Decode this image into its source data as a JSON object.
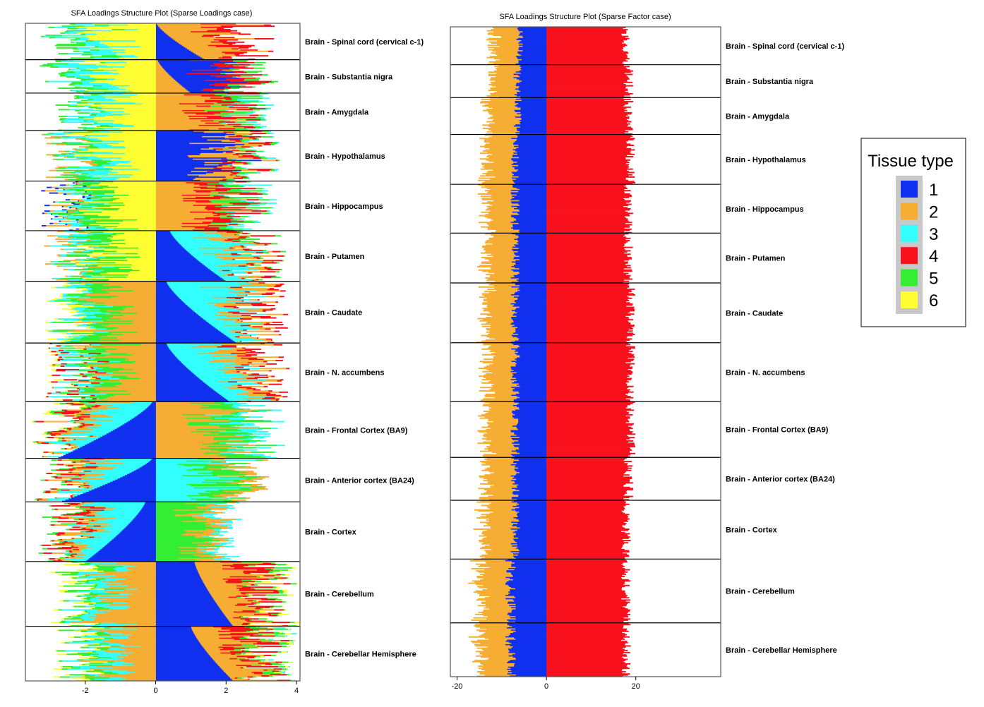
{
  "colors": {
    "1": "#1030f0",
    "2": "#f6ad33",
    "3": "#33ffff",
    "4": "#f8101c",
    "5": "#33ee33",
    "6": "#ffff33",
    "panel_border": "#555555",
    "divider": "#000000"
  },
  "legend": {
    "title": "Tissue type",
    "items": [
      {
        "label": "1",
        "color": "#1030f0"
      },
      {
        "label": "2",
        "color": "#f6ad33"
      },
      {
        "label": "3",
        "color": "#33ffff"
      },
      {
        "label": "4",
        "color": "#f8101c"
      },
      {
        "label": "5",
        "color": "#33ee33"
      },
      {
        "label": "6",
        "color": "#ffff33"
      }
    ]
  },
  "chart_data": [
    {
      "type": "bar",
      "orientation": "horizontal-stacked",
      "title": "SFA Loadings Structure Plot (Sparse Loadings case)",
      "xlim": [
        -3.7,
        4.1
      ],
      "x_ticks": [
        -2,
        0,
        2,
        4
      ],
      "groups": [
        {
          "label": "Brain - Spinal cord (cervical c-1)",
          "size": 3.6,
          "pos": [
            1,
            2,
            4
          ],
          "neg": [
            6,
            3,
            5
          ],
          "lead": 1,
          "lead_len": [
            0.02,
            1.4
          ],
          "pos_total": 3.5,
          "neg_total": 3.4
        },
        {
          "label": "Brain - Substantia nigra",
          "size": 3.3,
          "pos": [
            2,
            1,
            4,
            5
          ],
          "neg": [
            6,
            3,
            5
          ],
          "lead": 2,
          "lead_len": [
            0.05,
            1.0
          ],
          "pos_total": 3.3,
          "neg_total": 3.3
        },
        {
          "label": "Brain - Amygdala",
          "size": 3.7,
          "pos": [
            2,
            4,
            5,
            3
          ],
          "neg": [
            6,
            3,
            5
          ],
          "lead": 1,
          "lead_len": [
            0.02,
            0.4
          ],
          "pos_total": 3.2,
          "neg_total": 3.1
        },
        {
          "label": "Brain - Hypothalamus",
          "size": 5.0,
          "pos": [
            1,
            2,
            4,
            5,
            3
          ],
          "neg": [
            6,
            3,
            5,
            2
          ],
          "lead": 2,
          "lead_len": [
            0.2,
            1.2
          ],
          "pos_total": 3.3,
          "neg_total": 3.2
        },
        {
          "label": "Brain - Hippocampus",
          "size": 4.9,
          "pos": [
            2,
            4,
            5,
            3
          ],
          "neg": [
            6,
            5,
            3,
            2,
            1
          ],
          "lead": 1,
          "lead_len": [
            0.05,
            0.9
          ],
          "pos_total": 3.2,
          "neg_total": 3.2
        },
        {
          "label": "Brain - Putamen",
          "size": 5.0,
          "pos": [
            1,
            3,
            2,
            4,
            5
          ],
          "neg": [
            6,
            5,
            3,
            2
          ],
          "lead": 1,
          "lead_len": [
            0.4,
            2.0
          ],
          "pos_total": 3.4,
          "neg_total": 3.1
        },
        {
          "label": "Brain - Caudate",
          "size": 6.1,
          "pos": [
            1,
            3,
            2,
            4
          ],
          "neg": [
            2,
            5,
            3,
            6
          ],
          "lead": 1,
          "lead_len": [
            0.3,
            2.3
          ],
          "pos_total": 3.6,
          "neg_total": 3.2
        },
        {
          "label": "Brain - N. accumbens",
          "size": 5.8,
          "pos": [
            1,
            3,
            2,
            4
          ],
          "neg": [
            2,
            5,
            3,
            4,
            6
          ],
          "lead": 1,
          "lead_len": [
            0.3,
            2.1
          ],
          "pos_total": 3.6,
          "neg_total": 3.1
        },
        {
          "label": "Brain - Frontal Cortex (BA9)",
          "size": 5.6,
          "pos": [
            2,
            5,
            3
          ],
          "neg": [
            1,
            3,
            2,
            4,
            5,
            6
          ],
          "lead": 1,
          "lead_len": [
            0.1,
            2.8
          ],
          "pos_total": 3.5,
          "neg_total": 3.4
        },
        {
          "label": "Brain - Anterior cortex (BA24)",
          "size": 4.3,
          "pos": [
            3,
            5,
            2
          ],
          "neg": [
            1,
            3,
            2,
            4,
            5
          ],
          "lead": 1,
          "lead_len": [
            0.1,
            2.7
          ],
          "pos_total": 3.2,
          "neg_total": 3.4
        },
        {
          "label": "Brain - Cortex",
          "size": 5.9,
          "pos": [
            5,
            2,
            3
          ],
          "neg": [
            1,
            3,
            2,
            4,
            5
          ],
          "lead": 1,
          "lead_len": [
            0.3,
            2.0
          ],
          "pos_total": 2.3,
          "neg_total": 3.3
        },
        {
          "label": "Brain - Cerebellum",
          "size": 6.4,
          "pos": [
            1,
            2,
            4,
            5,
            6
          ],
          "neg": [
            2,
            3,
            5,
            6
          ],
          "lead": 1,
          "lead_len": [
            1.1,
            2.2
          ],
          "pos_total": 3.8,
          "neg_total": 3.0
        },
        {
          "label": "Brain - Cerebellar Hemisphere",
          "size": 5.4,
          "pos": [
            1,
            2,
            4,
            5,
            6,
            3
          ],
          "neg": [
            2,
            3,
            5,
            6
          ],
          "lead": 1,
          "lead_len": [
            1.0,
            2.2
          ],
          "pos_total": 3.7,
          "neg_total": 3.0
        }
      ]
    },
    {
      "type": "bar",
      "orientation": "horizontal-stacked",
      "title": "SFA Loadings Structure Plot (Sparse Factor case)",
      "xlim": [
        -21.5,
        39.0
      ],
      "x_ticks": [
        -20,
        0,
        20
      ],
      "groups": [
        {
          "label": "Brain - Spinal cord (cervical c-1)",
          "size": 3.8,
          "blue": 6.0,
          "orange": 6.0,
          "red": 18.0
        },
        {
          "label": "Brain - Substantia nigra",
          "size": 3.3,
          "blue": 6.5,
          "orange": 6.0,
          "red": 18.5
        },
        {
          "label": "Brain - Amygdala",
          "size": 3.7,
          "blue": 6.5,
          "orange": 6.5,
          "red": 18.5
        },
        {
          "label": "Brain - Hypothalamus",
          "size": 5.0,
          "blue": 7.0,
          "orange": 6.5,
          "red": 19.0
        },
        {
          "label": "Brain - Hippocampus",
          "size": 4.9,
          "blue": 7.0,
          "orange": 6.5,
          "red": 18.5
        },
        {
          "label": "Brain - Putamen",
          "size": 5.0,
          "blue": 7.0,
          "orange": 6.5,
          "red": 18.5
        },
        {
          "label": "Brain - Caudate",
          "size": 6.0,
          "blue": 7.0,
          "orange": 6.5,
          "red": 19.0
        },
        {
          "label": "Brain - N. accumbens",
          "size": 5.9,
          "blue": 7.0,
          "orange": 6.5,
          "red": 19.0
        },
        {
          "label": "Brain - Frontal Cortex (BA9)",
          "size": 5.6,
          "blue": 7.0,
          "orange": 6.5,
          "red": 19.0
        },
        {
          "label": "Brain - Anterior cortex (BA24)",
          "size": 4.3,
          "blue": 7.0,
          "orange": 6.5,
          "red": 18.5
        },
        {
          "label": "Brain - Cortex",
          "size": 5.9,
          "blue": 7.0,
          "orange": 7.0,
          "red": 18.0
        },
        {
          "label": "Brain - Cerebellum",
          "size": 6.4,
          "blue": 8.0,
          "orange": 7.0,
          "red": 18.0
        },
        {
          "label": "Brain - Cerebellar Hemisphere",
          "size": 5.4,
          "blue": 8.0,
          "orange": 7.0,
          "red": 18.0
        }
      ]
    }
  ]
}
